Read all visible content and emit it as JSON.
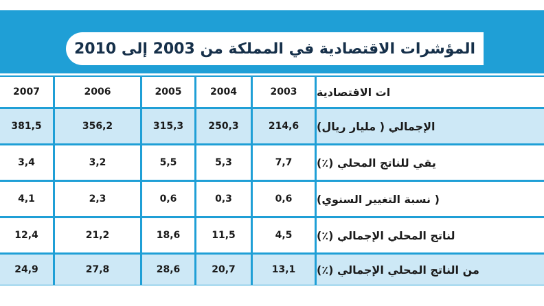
{
  "title": "المؤشرات الاقتصادية في المملكة من 2003 إلى 2010",
  "table": {
    "header_label": "ات الاقتصادية",
    "years": [
      "2007",
      "2006",
      "2005",
      "2004",
      "2003"
    ],
    "rows": [
      {
        "label": "الإجمالي ( مليار ريال)",
        "values": [
          "381,5",
          "356,2",
          "315,3",
          "250,3",
          "214,6"
        ]
      },
      {
        "label": "يقي للناتج المحلي (٪)",
        "values": [
          "3,4",
          "3,2",
          "5,5",
          "5,3",
          "7,7"
        ]
      },
      {
        "label": "( نسبة التغيير السنوي)",
        "values": [
          "4,1",
          "2,3",
          "0,6",
          "0,3",
          "0,6"
        ]
      },
      {
        "label": "لناتج المحلي الإجمالي (٪)",
        "values": [
          "12,4",
          "21,2",
          "18,6",
          "11,5",
          "4,5"
        ]
      },
      {
        "label": "من الناتج المحلي الإجمالي (٪)",
        "values": [
          "24,9",
          "27,8",
          "28,6",
          "20,7",
          "13,1"
        ]
      }
    ]
  }
}
